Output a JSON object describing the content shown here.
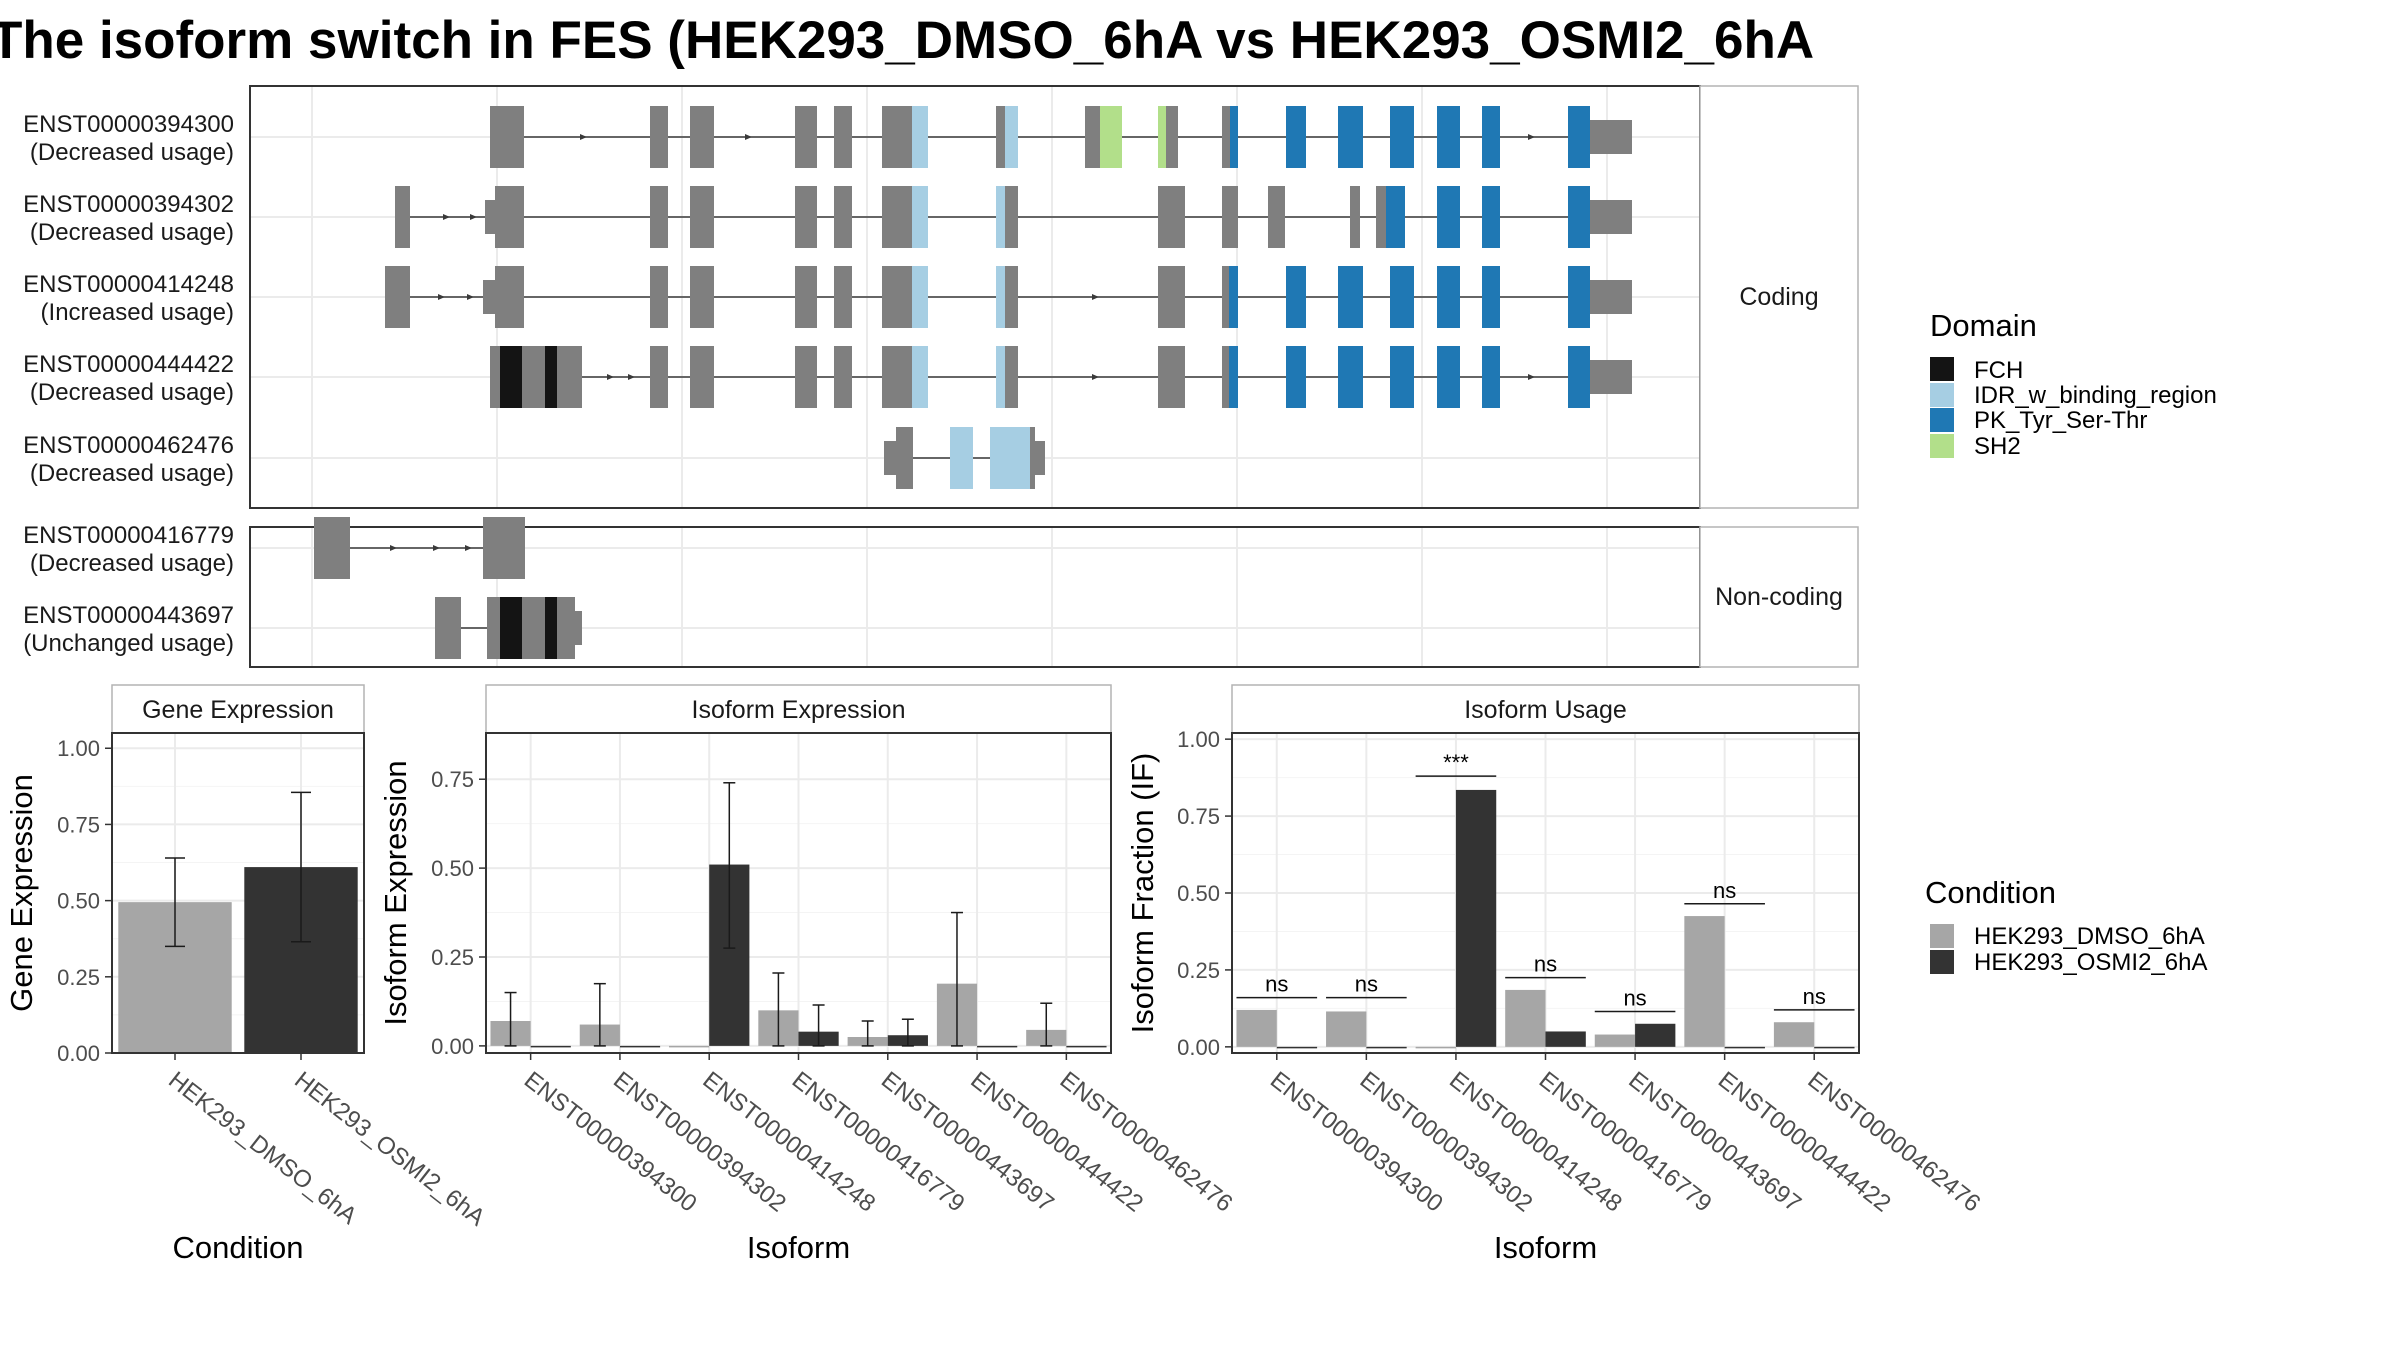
{
  "title": "The isoform switch in FES (HEK293_DMSO_6hA vs HEK293_OSMI2_6hA",
  "colors": {
    "exon": "#7f7f7f",
    "intron": "#3a3a3a",
    "FCH": "#141414",
    "IDR_w_binding_region": "#a6cee3",
    "PK_Tyr_Ser-Thr": "#1f78b4",
    "SH2": "#b2df8a",
    "HEK293_DMSO_6hA": "#a6a6a6",
    "HEK293_OSMI2_6hA": "#333333",
    "panel_border": "#333333",
    "grid": "#ebebeb"
  },
  "structure": {
    "coding_label": "Coding",
    "noncoding_label": "Non-coding",
    "transcripts": [
      {
        "id": "ENST00000394300",
        "usage": "(Decreased usage)",
        "group": "coding"
      },
      {
        "id": "ENST00000394302",
        "usage": "(Decreased usage)",
        "group": "coding"
      },
      {
        "id": "ENST00000414248",
        "usage": "(Increased usage)",
        "group": "coding"
      },
      {
        "id": "ENST00000444422",
        "usage": "(Decreased usage)",
        "group": "coding"
      },
      {
        "id": "ENST00000462476",
        "usage": "(Decreased usage)",
        "group": "coding"
      },
      {
        "id": "ENST00000416779",
        "usage": "(Decreased usage)",
        "group": "noncoding"
      },
      {
        "id": "ENST00000443697",
        "usage": "(Unchanged usage)",
        "group": "noncoding"
      }
    ]
  },
  "legend_domain": {
    "title": "Domain",
    "items": [
      {
        "label": "FCH",
        "color": "#141414"
      },
      {
        "label": "IDR_w_binding_region",
        "color": "#a6cee3"
      },
      {
        "label": "PK_Tyr_Ser-Thr",
        "color": "#1f78b4"
      },
      {
        "label": "SH2",
        "color": "#b2df8a"
      }
    ]
  },
  "legend_condition": {
    "title": "Condition",
    "items": [
      {
        "label": "HEK293_DMSO_6hA",
        "color": "#a6a6a6"
      },
      {
        "label": "HEK293_OSMI2_6hA",
        "color": "#333333"
      }
    ]
  },
  "chart_data": [
    {
      "type": "bar",
      "title": "Gene Expression",
      "xlabel": "Condition",
      "ylabel": "Gene Expression",
      "ylim": [
        0,
        1.05
      ],
      "yticks": [
        "0.00",
        "0.25",
        "0.50",
        "0.75",
        "1.00"
      ],
      "categories": [
        "HEK293_DMSO_6hA",
        "HEK293_OSMI2_6hA"
      ],
      "values": [
        0.495,
        0.61
      ],
      "err_low": [
        0.35,
        0.365
      ],
      "err_high": [
        0.64,
        0.855
      ]
    },
    {
      "type": "bar",
      "title": "Isoform Expression",
      "xlabel": "Isoform",
      "ylabel": "Isoform Expression",
      "ylim": [
        -0.02,
        0.88
      ],
      "yticks": [
        "0.00",
        "0.25",
        "0.50",
        "0.75"
      ],
      "categories": [
        "ENST00000394300",
        "ENST00000394302",
        "ENST00000414248",
        "ENST00000416779",
        "ENST00000443697",
        "ENST00000444422",
        "ENST00000462476"
      ],
      "series": [
        {
          "name": "HEK293_DMSO_6hA",
          "values": [
            0.07,
            0.06,
            0.0,
            0.1,
            0.025,
            0.175,
            0.045
          ],
          "err_low": [
            0.0,
            0.0,
            0.0,
            0.0,
            0.0,
            0.0,
            0.0
          ],
          "err_high": [
            0.15,
            0.175,
            0.0,
            0.205,
            0.07,
            0.375,
            0.12
          ]
        },
        {
          "name": "HEK293_OSMI2_6hA",
          "values": [
            0.0,
            0.0,
            0.51,
            0.04,
            0.03,
            0.0,
            0.0
          ],
          "err_low": [
            0.0,
            0.0,
            0.275,
            0.0,
            0.0,
            0.0,
            0.0
          ],
          "err_high": [
            0.0,
            0.0,
            0.74,
            0.115,
            0.075,
            0.0,
            0.0
          ]
        }
      ]
    },
    {
      "type": "bar",
      "title": "Isoform Usage",
      "xlabel": "Isoform",
      "ylabel": "Isoform Fraction (IF)",
      "ylim": [
        -0.02,
        1.02
      ],
      "yticks": [
        "0.00",
        "0.25",
        "0.50",
        "0.75",
        "1.00"
      ],
      "categories": [
        "ENST00000394300",
        "ENST00000394302",
        "ENST00000414248",
        "ENST00000416779",
        "ENST00000443697",
        "ENST00000444422",
        "ENST00000462476"
      ],
      "series": [
        {
          "name": "HEK293_DMSO_6hA",
          "values": [
            0.12,
            0.115,
            0.0,
            0.185,
            0.04,
            0.425,
            0.08
          ]
        },
        {
          "name": "HEK293_OSMI2_6hA",
          "values": [
            0.0,
            0.0,
            0.835,
            0.05,
            0.075,
            0.0,
            0.0
          ]
        }
      ],
      "significance": [
        "ns",
        "ns",
        "***",
        "ns",
        "ns",
        "ns",
        "ns"
      ],
      "significance_level": [
        0.16,
        0.16,
        0.88,
        0.225,
        0.115,
        0.465,
        0.12
      ]
    }
  ]
}
